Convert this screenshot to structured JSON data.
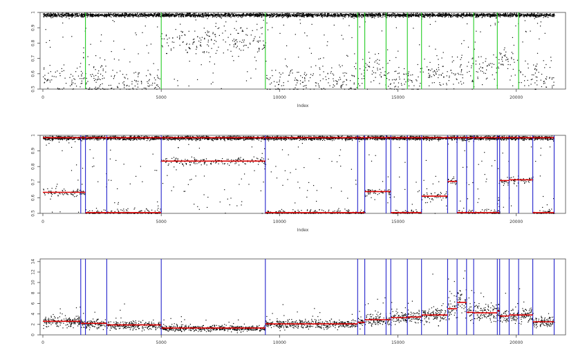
{
  "chart_data": [
    {
      "type": "scatter",
      "panel": "top",
      "xlabel": "Index",
      "ylabel": "",
      "xlim": [
        0,
        24000
      ],
      "ylim": [
        0.5,
        1.0
      ],
      "xticks": [
        0,
        5000,
        10000,
        15000,
        20000
      ],
      "yticks": [
        0.5,
        0.6,
        0.7,
        0.8,
        0.9,
        1.0
      ],
      "ytick_labels": [
        "0.5",
        "0.6",
        "0.7",
        "0.8",
        "0.9",
        "1"
      ],
      "marker_color": "#000000",
      "breakpoint_color": "#22cc22",
      "breakpoints": [
        1800,
        5000,
        9400,
        13300,
        13600,
        14500,
        15400,
        16000,
        18200,
        19200,
        20100
      ],
      "segments": [
        {
          "x": [
            0,
            1800
          ],
          "baseline": 0.985,
          "cluster": 0.565,
          "density": 0.45
        },
        {
          "x": [
            1800,
            5000
          ],
          "baseline": 0.985,
          "cluster": 0.545,
          "density": 0.6
        },
        {
          "x": [
            5000,
            9400
          ],
          "baseline": 0.985,
          "cluster": 0.82,
          "density": 0.5
        },
        {
          "x": [
            9400,
            13300
          ],
          "baseline": 0.985,
          "cluster": 0.545,
          "density": 0.55
        },
        {
          "x": [
            13300,
            14500
          ],
          "baseline": 0.985,
          "cluster": 0.63,
          "density": 0.5
        },
        {
          "x": [
            14500,
            15400
          ],
          "baseline": 0.985,
          "cluster": 0.545,
          "density": 0.55
        },
        {
          "x": [
            15400,
            16000
          ],
          "baseline": 0.985,
          "cluster": 0.55,
          "density": 0.5
        },
        {
          "x": [
            16000,
            18200
          ],
          "baseline": 0.985,
          "cluster": 0.6,
          "density": 0.55
        },
        {
          "x": [
            18200,
            19200
          ],
          "baseline": 0.985,
          "cluster": 0.62,
          "density": 0.5
        },
        {
          "x": [
            19200,
            20100
          ],
          "baseline": 0.985,
          "cluster": 0.68,
          "density": 0.55
        },
        {
          "x": [
            20100,
            21600
          ],
          "baseline": 0.985,
          "cluster": 0.58,
          "density": 0.55
        }
      ]
    },
    {
      "type": "scatter",
      "panel": "middle",
      "xlabel": "Index",
      "ylabel": "",
      "xlim": [
        0,
        24000
      ],
      "ylim": [
        0.5,
        1.0
      ],
      "xticks": [
        0,
        5000,
        10000,
        15000,
        20000
      ],
      "yticks": [
        0.5,
        0.6,
        0.7,
        0.8,
        0.9,
        1.0
      ],
      "ytick_labels": [
        "0.5",
        "0.6",
        "0.7",
        "0.8",
        "0.9",
        "1"
      ],
      "marker_color": "#000000",
      "breakpoint_color": "#2222cc",
      "mean_color": "#dd0000",
      "breakpoints": [
        1600,
        1800,
        2700,
        5000,
        9400,
        13300,
        13600,
        14500,
        14700,
        15400,
        16000,
        17100,
        17500,
        17900,
        18200,
        19200,
        19300,
        19700,
        20100,
        20700,
        21600
      ],
      "segments": [
        {
          "x": [
            0,
            1600
          ],
          "baseline": 0.985,
          "level": 0.635
        },
        {
          "x": [
            1600,
            1800
          ],
          "baseline": 0.985,
          "level": 0.635
        },
        {
          "x": [
            1800,
            2700
          ],
          "baseline": 0.985,
          "level": 0.505
        },
        {
          "x": [
            2700,
            5000
          ],
          "baseline": 0.985,
          "level": 0.505
        },
        {
          "x": [
            5000,
            9400
          ],
          "baseline": 0.985,
          "level": 0.835
        },
        {
          "x": [
            9400,
            13300
          ],
          "baseline": 0.985,
          "level": 0.505
        },
        {
          "x": [
            13300,
            13600
          ],
          "baseline": 0.985,
          "level": 0.505
        },
        {
          "x": [
            13600,
            14500
          ],
          "baseline": 0.985,
          "level": 0.64
        },
        {
          "x": [
            14500,
            14700
          ],
          "baseline": 0.985,
          "level": 0.64
        },
        {
          "x": [
            14700,
            15400
          ],
          "baseline": 0.985,
          "level": 0.505
        },
        {
          "x": [
            15400,
            16000
          ],
          "baseline": 0.985,
          "level": 0.505
        },
        {
          "x": [
            16000,
            17100
          ],
          "baseline": 0.985,
          "level": 0.61
        },
        {
          "x": [
            17100,
            17500
          ],
          "baseline": 0.985,
          "level": 0.705
        },
        {
          "x": [
            17500,
            17900
          ],
          "baseline": 0.985,
          "level": 0.505
        },
        {
          "x": [
            17900,
            18200
          ],
          "baseline": 0.985,
          "level": 0.505
        },
        {
          "x": [
            18200,
            19200
          ],
          "baseline": 0.985,
          "level": 0.505
        },
        {
          "x": [
            19200,
            19300
          ],
          "baseline": 0.985,
          "level": 0.505
        },
        {
          "x": [
            19300,
            19700
          ],
          "baseline": 0.985,
          "level": 0.71
        },
        {
          "x": [
            19700,
            20100
          ],
          "baseline": 0.985,
          "level": 0.715
        },
        {
          "x": [
            20100,
            20700
          ],
          "baseline": 0.985,
          "level": 0.715
        },
        {
          "x": [
            20700,
            21600
          ],
          "baseline": 0.985,
          "level": 0.505
        }
      ]
    },
    {
      "type": "scatter",
      "panel": "bottom",
      "xlabel": "",
      "ylabel": "",
      "xlim": [
        0,
        24000
      ],
      "ylim": [
        0,
        14.5
      ],
      "xticks": [
        0,
        5000,
        10000,
        15000,
        20000
      ],
      "yticks": [
        0,
        2,
        4,
        6,
        8,
        10,
        12,
        14
      ],
      "ytick_labels": [
        "0",
        "2",
        "4",
        "6",
        "8",
        "10",
        "12",
        "14"
      ],
      "marker_color": "#000000",
      "breakpoint_color": "#2222cc",
      "mean_color": "#dd0000",
      "breakpoints": [
        1600,
        1800,
        2700,
        5000,
        9400,
        13300,
        13600,
        14500,
        14700,
        15400,
        16000,
        17100,
        17500,
        17900,
        18200,
        19200,
        19300,
        19700,
        20100,
        20700,
        21600
      ],
      "segments": [
        {
          "x": [
            0,
            1600
          ],
          "level": 2.6,
          "spread": 0.9
        },
        {
          "x": [
            1600,
            1800
          ],
          "level": 2.2,
          "spread": 0.8
        },
        {
          "x": [
            1800,
            2700
          ],
          "level": 2.2,
          "spread": 0.8
        },
        {
          "x": [
            2700,
            5000
          ],
          "level": 1.9,
          "spread": 0.7
        },
        {
          "x": [
            5000,
            9400
          ],
          "level": 1.3,
          "spread": 0.5
        },
        {
          "x": [
            9400,
            13300
          ],
          "level": 2.1,
          "spread": 0.7
        },
        {
          "x": [
            13300,
            13600
          ],
          "level": 2.4,
          "spread": 0.8
        },
        {
          "x": [
            13600,
            14500
          ],
          "level": 2.9,
          "spread": 1.0
        },
        {
          "x": [
            14500,
            14700
          ],
          "level": 2.9,
          "spread": 1.0
        },
        {
          "x": [
            14700,
            15400
          ],
          "level": 3.3,
          "spread": 1.1
        },
        {
          "x": [
            15400,
            16000
          ],
          "level": 3.4,
          "spread": 1.1
        },
        {
          "x": [
            16000,
            17100
          ],
          "level": 3.8,
          "spread": 1.3
        },
        {
          "x": [
            17100,
            17500
          ],
          "level": 5.0,
          "spread": 1.8
        },
        {
          "x": [
            17500,
            17900
          ],
          "level": 6.2,
          "spread": 2.5
        },
        {
          "x": [
            17900,
            18200
          ],
          "level": 4.3,
          "spread": 1.5
        },
        {
          "x": [
            18200,
            19200
          ],
          "level": 4.2,
          "spread": 1.4
        },
        {
          "x": [
            19200,
            19300
          ],
          "level": 4.6,
          "spread": 1.4
        },
        {
          "x": [
            19300,
            19700
          ],
          "level": 3.6,
          "spread": 1.2
        },
        {
          "x": [
            19700,
            20100
          ],
          "level": 3.8,
          "spread": 1.2
        },
        {
          "x": [
            20100,
            20700
          ],
          "level": 3.8,
          "spread": 1.2
        },
        {
          "x": [
            20700,
            21600
          ],
          "level": 2.5,
          "spread": 0.9
        }
      ]
    }
  ]
}
